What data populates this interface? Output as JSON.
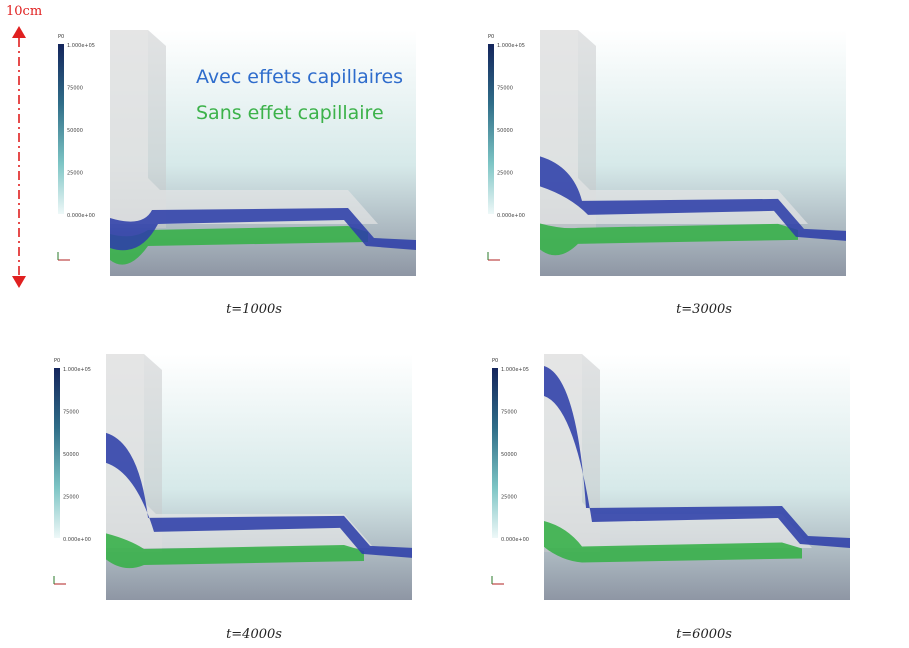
{
  "scale": {
    "label": "10cm"
  },
  "legend": {
    "capillary": "Avec effets capillaires",
    "no_capillary": "Sans effet capillaire",
    "capillary_color": "#2e3fa8",
    "no_capillary_color": "#39b04a"
  },
  "colorbar": {
    "title": "P0",
    "ticks": [
      "1.000e+05",
      "75000",
      "50000",
      "25000",
      "0.000e+00"
    ]
  },
  "panels": [
    {
      "time": "t=1000s",
      "blue_level": 0.0,
      "green_level": 0.0
    },
    {
      "time": "t=3000s",
      "blue_level": 0.35,
      "green_level": 0.12
    },
    {
      "time": "t=4000s",
      "blue_level": 0.62,
      "green_level": 0.28
    },
    {
      "time": "t=6000s",
      "blue_level": 1.0,
      "green_level": 0.42
    }
  ]
}
